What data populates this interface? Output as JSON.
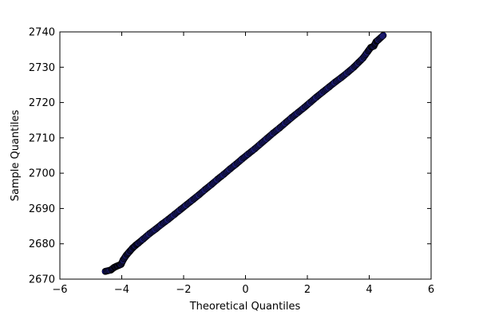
{
  "chart_data": {
    "type": "scatter",
    "title": "",
    "xlabel": "Theoretical Quantiles",
    "ylabel": "Sample Quantiles",
    "xlim": [
      -6,
      6
    ],
    "ylim": [
      2670,
      2740
    ],
    "x_ticks": [
      -6,
      -4,
      -2,
      0,
      2,
      4,
      6
    ],
    "y_ticks": [
      2670,
      2680,
      2690,
      2700,
      2710,
      2720,
      2730,
      2740
    ],
    "x_tick_labels": [
      "−6",
      "−4",
      "−2",
      "0",
      "2",
      "4",
      "6"
    ],
    "y_tick_labels": [
      "2670",
      "2680",
      "2690",
      "2700",
      "2710",
      "2720",
      "2730",
      "2740"
    ],
    "grid": false,
    "legend": "none",
    "marker_fill": "#0000ff",
    "marker_edge": "#000000",
    "series": [
      {
        "x": [
          -4.53,
          -4.35,
          -4.25,
          -4.18,
          -4.1,
          -4.02,
          -3.95,
          -3.85,
          -3.75,
          -3.65,
          -3.55,
          -3.45,
          -3.3,
          -3.1,
          -2.9,
          -2.7,
          -2.5,
          -2.3,
          -2.1,
          -1.9,
          -1.7,
          -1.5,
          -1.3,
          -1.1,
          -0.9,
          -0.7,
          -0.5,
          -0.3,
          -0.1,
          0.1,
          0.3,
          0.5,
          0.7,
          0.9,
          1.1,
          1.3,
          1.5,
          1.7,
          1.9,
          2.1,
          2.3,
          2.5,
          2.7,
          2.9,
          3.1,
          3.3,
          3.5,
          3.65,
          3.8,
          3.95,
          4.05,
          4.15,
          4.22,
          4.3,
          4.45
        ],
        "y": [
          2672.2,
          2672.6,
          2673.3,
          2673.6,
          2673.9,
          2674.2,
          2675.5,
          2676.8,
          2677.8,
          2678.8,
          2679.6,
          2680.3,
          2681.4,
          2682.9,
          2684.2,
          2685.6,
          2686.9,
          2688.3,
          2689.7,
          2691.1,
          2692.5,
          2693.9,
          2695.4,
          2696.8,
          2698.3,
          2699.7,
          2701.2,
          2702.6,
          2704.1,
          2705.5,
          2706.9,
          2708.4,
          2709.9,
          2711.4,
          2712.8,
          2714.3,
          2715.8,
          2717.2,
          2718.6,
          2720.1,
          2721.6,
          2723.0,
          2724.4,
          2725.8,
          2727.1,
          2728.5,
          2730.0,
          2731.3,
          2732.6,
          2734.4,
          2735.6,
          2736.0,
          2737.2,
          2737.8,
          2739.0
        ]
      }
    ]
  }
}
